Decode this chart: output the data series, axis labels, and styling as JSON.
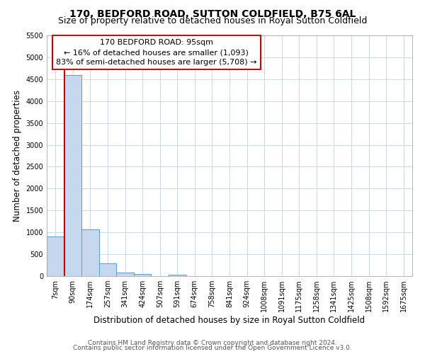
{
  "title": "170, BEDFORD ROAD, SUTTON COLDFIELD, B75 6AL",
  "subtitle": "Size of property relative to detached houses in Royal Sutton Coldfield",
  "xlabel": "Distribution of detached houses by size in Royal Sutton Coldfield",
  "ylabel": "Number of detached properties",
  "bar_labels": [
    "7sqm",
    "90sqm",
    "174sqm",
    "257sqm",
    "341sqm",
    "424sqm",
    "507sqm",
    "591sqm",
    "674sqm",
    "758sqm",
    "841sqm",
    "924sqm",
    "1008sqm",
    "1091sqm",
    "1175sqm",
    "1258sqm",
    "1341sqm",
    "1425sqm",
    "1508sqm",
    "1592sqm",
    "1675sqm"
  ],
  "bar_values": [
    900,
    4600,
    1075,
    290,
    85,
    55,
    0,
    40,
    0,
    0,
    0,
    0,
    0,
    0,
    0,
    0,
    0,
    0,
    0,
    0,
    0
  ],
  "bar_color": "#c5d8ed",
  "bar_edge_color": "#5b9bd5",
  "annotation_title": "170 BEDFORD ROAD: 95sqm",
  "annotation_line1": "← 16% of detached houses are smaller (1,093)",
  "annotation_line2": "83% of semi-detached houses are larger (5,708) →",
  "vline_index": 1,
  "vline_color": "#cc0000",
  "ylim": [
    0,
    5500
  ],
  "yticks": [
    0,
    500,
    1000,
    1500,
    2000,
    2500,
    3000,
    3500,
    4000,
    4500,
    5000,
    5500
  ],
  "footer1": "Contains HM Land Registry data © Crown copyright and database right 2024.",
  "footer2": "Contains public sector information licensed under the Open Government Licence v3.0.",
  "background_color": "#ffffff",
  "grid_color": "#c8d8e8",
  "title_fontsize": 10,
  "subtitle_fontsize": 9,
  "xlabel_fontsize": 8.5,
  "ylabel_fontsize": 8.5,
  "tick_fontsize": 7,
  "annotation_fontsize": 8,
  "footer_fontsize": 6.5,
  "annotation_box_edge": "#cc0000"
}
